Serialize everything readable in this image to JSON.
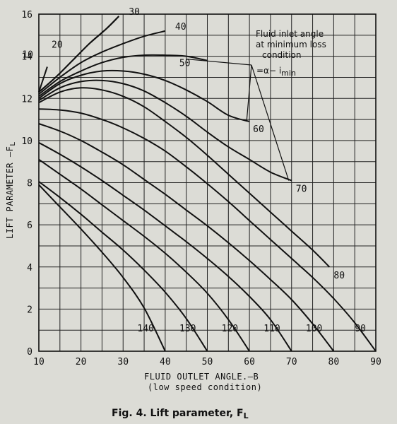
{
  "chart_data": {
    "type": "line",
    "caption": "Fig. 4.  Lift parameter, F",
    "caption_sub": "L",
    "ylabel": "LIFT PARAMETER —F",
    "ylabel_sub": "L",
    "xlabel": "FLUID OUTLET ANGLE.—B",
    "xlabel_note": "(low speed condition)",
    "annotation": {
      "lines": [
        "Fluid inlet angle",
        "at minimum loss",
        "condition"
      ],
      "formula": "=α− i",
      "formula_sub": "min"
    },
    "xlim": [
      10,
      90
    ],
    "ylim": [
      0,
      16
    ],
    "x_ticks": [
      "10",
      "20",
      "30",
      "40",
      "50",
      "60",
      "70",
      "80",
      "90"
    ],
    "y_ticks": [
      "0",
      "2",
      "4",
      "6",
      "8",
      "10",
      "12",
      "14",
      "16"
    ],
    "grid": true,
    "series": [
      {
        "name": "10",
        "x": [
          10,
          12
        ],
        "y": [
          12.3,
          13.5
        ]
      },
      {
        "name": "20",
        "x": [
          10,
          14,
          18,
          22,
          26,
          29
        ],
        "y": [
          12.3,
          13.0,
          13.8,
          14.6,
          15.3,
          15.9
        ]
      },
      {
        "name": "30",
        "x": [
          10,
          14,
          18,
          22,
          26,
          29
        ],
        "y": [
          12.3,
          13.0,
          13.8,
          14.6,
          15.3,
          15.9
        ]
      },
      {
        "name": "40",
        "x": [
          10,
          15,
          20,
          25,
          30,
          35,
          40
        ],
        "y": [
          12.2,
          13.0,
          13.7,
          14.2,
          14.6,
          14.95,
          15.2
        ]
      },
      {
        "name": "50",
        "x": [
          10,
          15,
          20,
          25,
          30,
          35,
          40,
          45,
          50
        ],
        "y": [
          12.1,
          12.8,
          13.3,
          13.7,
          13.95,
          14.05,
          14.05,
          14.0,
          13.8
        ]
      },
      {
        "name": "60",
        "x": [
          10,
          15,
          20,
          25,
          30,
          35,
          40,
          45,
          50,
          55,
          60
        ],
        "y": [
          12.0,
          12.7,
          13.1,
          13.3,
          13.3,
          13.15,
          12.85,
          12.4,
          11.85,
          11.2,
          10.9
        ]
      },
      {
        "name": "70",
        "x": [
          10,
          15,
          20,
          25,
          30,
          35,
          40,
          45,
          50,
          55,
          60,
          65,
          70
        ],
        "y": [
          11.9,
          12.5,
          12.8,
          12.85,
          12.7,
          12.35,
          11.8,
          11.15,
          10.4,
          9.7,
          9.1,
          8.5,
          8.1
        ]
      },
      {
        "name": "80",
        "x": [
          10,
          15,
          20,
          25,
          30,
          35,
          40,
          45,
          50,
          55,
          60,
          65,
          70,
          75,
          79
        ],
        "y": [
          11.8,
          12.3,
          12.5,
          12.4,
          12.1,
          11.6,
          10.9,
          10.15,
          9.3,
          8.4,
          7.5,
          6.6,
          5.7,
          4.8,
          4.0
        ]
      },
      {
        "name": "90",
        "x": [
          10,
          15,
          20,
          25,
          30,
          35,
          40,
          45,
          50,
          55,
          60,
          65,
          70,
          75,
          80,
          85,
          90
        ],
        "y": [
          11.5,
          11.45,
          11.3,
          11.0,
          10.6,
          10.1,
          9.5,
          8.75,
          7.95,
          7.1,
          6.2,
          5.3,
          4.4,
          3.5,
          2.5,
          1.35,
          0
        ]
      },
      {
        "name": "100",
        "x": [
          10,
          15,
          20,
          25,
          30,
          35,
          40,
          45,
          50,
          55,
          60,
          65,
          70,
          75,
          80
        ],
        "y": [
          10.8,
          10.45,
          10.0,
          9.45,
          8.85,
          8.15,
          7.45,
          6.7,
          5.95,
          5.15,
          4.3,
          3.4,
          2.45,
          1.3,
          0
        ]
      },
      {
        "name": "110",
        "x": [
          10,
          15,
          20,
          25,
          30,
          35,
          40,
          45,
          50,
          55,
          60,
          65,
          70
        ],
        "y": [
          9.9,
          9.35,
          8.75,
          8.1,
          7.4,
          6.7,
          5.95,
          5.2,
          4.4,
          3.55,
          2.6,
          1.5,
          0
        ]
      },
      {
        "name": "120",
        "x": [
          10,
          15,
          20,
          25,
          30,
          35,
          40,
          45,
          50,
          55,
          60
        ],
        "y": [
          9.1,
          8.4,
          7.7,
          6.95,
          6.2,
          5.45,
          4.65,
          3.75,
          2.75,
          1.5,
          0
        ]
      },
      {
        "name": "130",
        "x": [
          10,
          15,
          20,
          25,
          30,
          35,
          40,
          45,
          50
        ],
        "y": [
          8.05,
          7.3,
          6.5,
          5.65,
          4.8,
          3.85,
          2.8,
          1.55,
          0
        ]
      },
      {
        "name": "140",
        "x": [
          10,
          15,
          20,
          25,
          30,
          35,
          40
        ],
        "y": [
          7.9,
          6.85,
          5.8,
          4.7,
          3.5,
          2.05,
          0
        ]
      }
    ]
  }
}
